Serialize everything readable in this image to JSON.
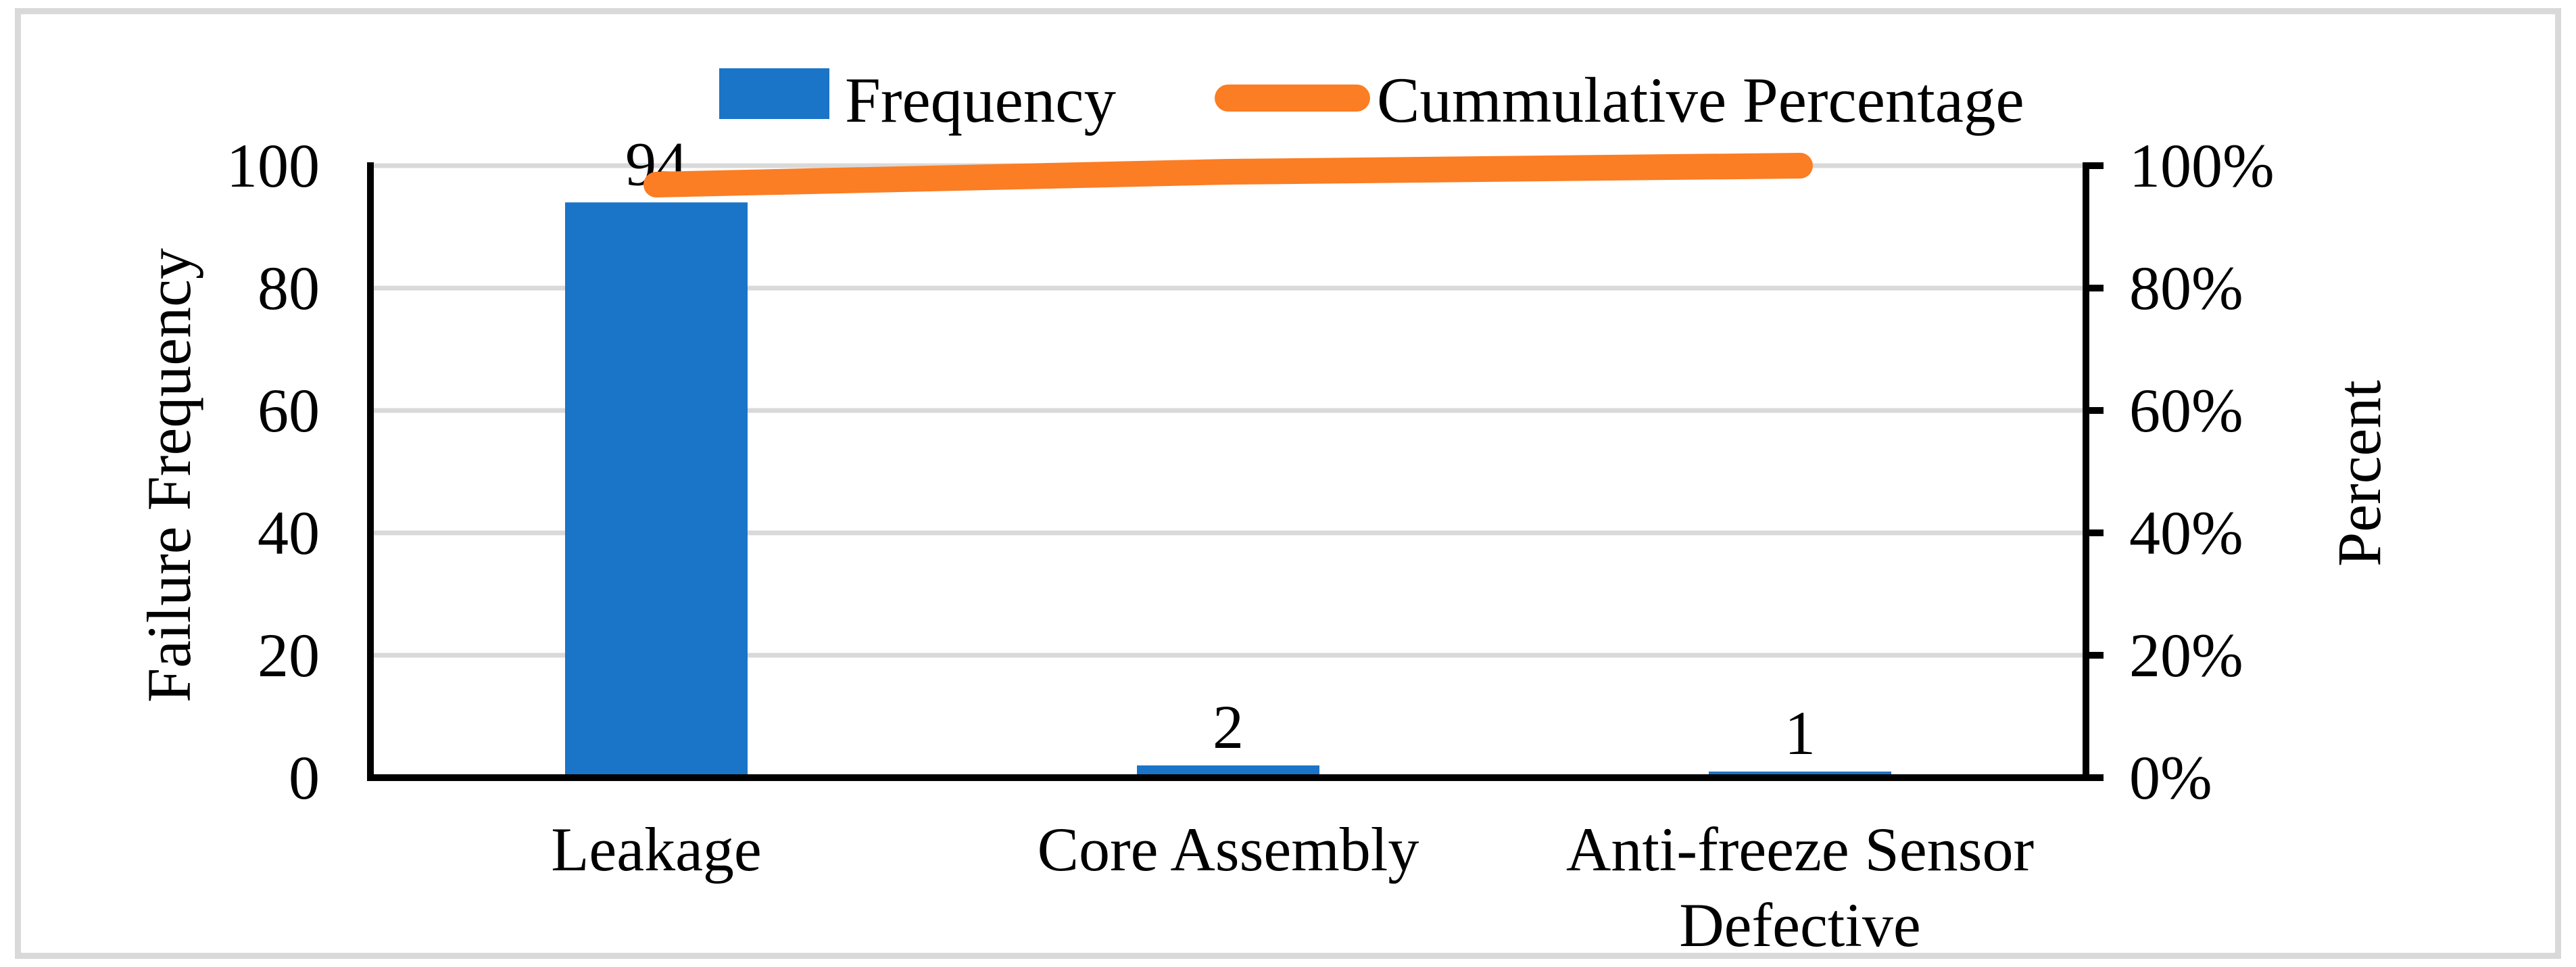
{
  "chart_data": {
    "type": "bar+line (Pareto combo)",
    "categories": [
      "Leakage",
      "Core Assembly",
      "Anti-freeze Sensor Defective"
    ],
    "series": [
      {
        "name": "Frequency",
        "type": "bar",
        "axis": "left",
        "color": "#1A74C7",
        "values": [
          94,
          2,
          1
        ],
        "data_labels": [
          "94",
          "2",
          "1"
        ]
      },
      {
        "name": "Cummulative Percentage",
        "type": "line",
        "axis": "right",
        "color": "#FB7D24",
        "values_percent": [
          96.9,
          99.0,
          100.0
        ]
      }
    ],
    "left_axis": {
      "title": "Failure Frequency",
      "min": 0,
      "max": 100,
      "tick_values": [
        0,
        20,
        40,
        60,
        80,
        100
      ],
      "tick_labels": [
        "0",
        "20",
        "40",
        "60",
        "80",
        "100"
      ]
    },
    "right_axis": {
      "title": "Percent",
      "min": 0,
      "max": 100,
      "tick_values": [
        0,
        20,
        40,
        60,
        80,
        100
      ],
      "tick_labels": [
        "0%",
        "20%",
        "40%",
        "60%",
        "80%",
        "100%"
      ]
    },
    "grid": true,
    "legend_position": "top-center",
    "colors": {
      "bar": "#1A74C7",
      "line": "#FB7D24",
      "gridline": "#D9D9D9",
      "axis": "#000000",
      "frame_border": "#D9D9D9",
      "text": "#000000",
      "background": "#FFFFFF"
    }
  }
}
